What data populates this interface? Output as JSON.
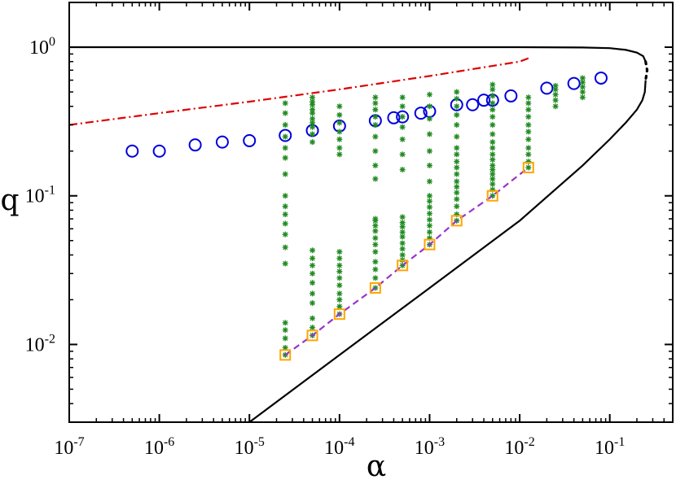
{
  "chart_data": {
    "type": "scatter",
    "xlabel": "α",
    "ylabel": "q",
    "xscale": "log",
    "yscale": "log",
    "xlim": [
      1e-07,
      0.5
    ],
    "ylim": [
      0.003,
      2.0
    ],
    "grid": false,
    "legend": "none",
    "x_ticks": [
      {
        "value": 1e-07,
        "base": "10",
        "exp": "-7"
      },
      {
        "value": 1e-06,
        "base": "10",
        "exp": "-6"
      },
      {
        "value": 1e-05,
        "base": "10",
        "exp": "-5"
      },
      {
        "value": 0.0001,
        "base": "10",
        "exp": "-4"
      },
      {
        "value": 0.001,
        "base": "10",
        "exp": "-3"
      },
      {
        "value": 0.01,
        "base": "10",
        "exp": "-2"
      },
      {
        "value": 0.1,
        "base": "10",
        "exp": "-1"
      }
    ],
    "y_ticks": [
      {
        "value": 0.01,
        "base": "10",
        "exp": "-2"
      },
      {
        "value": 0.1,
        "base": "10",
        "exp": "-1"
      },
      {
        "value": 1,
        "base": "10",
        "exp": "0"
      }
    ],
    "series": [
      {
        "style": "solid-line",
        "color": "#000000",
        "x": [
          1e-07,
          1e-05,
          0.0001,
          0.001,
          0.01,
          0.05,
          0.1,
          0.15,
          0.2,
          0.235,
          0.25
        ],
        "y": [
          1.0,
          1.0,
          1.0,
          1.0,
          1.0,
          0.995,
          0.985,
          0.96,
          0.92,
          0.87,
          0.8
        ]
      },
      {
        "style": "dotted-line",
        "color": "#000000",
        "x": [
          0.25,
          0.26,
          0.25
        ],
        "y": [
          0.8,
          0.7,
          0.6
        ]
      },
      {
        "style": "solid-line",
        "color": "#000000",
        "x": [
          1e-05,
          0.0001,
          0.001,
          0.01,
          0.05,
          0.1,
          0.15,
          0.2,
          0.23,
          0.245,
          0.25
        ],
        "y": [
          0.003,
          0.0085,
          0.024,
          0.068,
          0.16,
          0.24,
          0.31,
          0.38,
          0.44,
          0.5,
          0.6
        ]
      },
      {
        "style": "dash-dot-line",
        "color": "#dd0000",
        "x": [
          1e-07,
          1e-06,
          1e-05,
          0.0001,
          0.001,
          0.01,
          0.013
        ],
        "y": [
          0.3,
          0.36,
          0.43,
          0.52,
          0.64,
          0.8,
          0.85
        ]
      },
      {
        "style": "open-circle",
        "color": "#0000dd",
        "x": [
          5e-07,
          1e-06,
          2.5e-06,
          5e-06,
          1e-05,
          2.5e-05,
          5e-05,
          0.0001,
          0.00025,
          0.0004,
          0.0005,
          0.0008,
          0.001,
          0.002,
          0.003,
          0.004,
          0.005,
          0.008,
          0.02,
          0.04,
          0.08
        ],
        "y": [
          0.2,
          0.2,
          0.22,
          0.23,
          0.235,
          0.255,
          0.275,
          0.295,
          0.32,
          0.335,
          0.34,
          0.36,
          0.37,
          0.41,
          0.41,
          0.44,
          0.44,
          0.47,
          0.53,
          0.57,
          0.62
        ]
      },
      {
        "style": "star",
        "color": "#228b22",
        "columns": [
          {
            "x": 2.5e-05,
            "y": [
              0.0085,
              0.0095,
              0.011,
              0.0125,
              0.014,
              0.035,
              0.045,
              0.055,
              0.065,
              0.075,
              0.085,
              0.1,
              0.14,
              0.18,
              0.21,
              0.25,
              0.3,
              0.36,
              0.42
            ]
          },
          {
            "x": 5e-05,
            "y": [
              0.0115,
              0.013,
              0.015,
              0.019,
              0.022,
              0.026,
              0.03,
              0.034,
              0.038,
              0.043,
              0.23,
              0.26,
              0.29,
              0.31,
              0.33,
              0.36,
              0.38,
              0.41,
              0.43,
              0.46
            ]
          },
          {
            "x": 0.0001,
            "y": [
              0.016,
              0.018,
              0.02,
              0.022,
              0.025,
              0.028,
              0.031,
              0.034,
              0.038,
              0.042,
              0.19,
              0.21,
              0.24,
              0.27,
              0.31,
              0.35,
              0.4
            ]
          },
          {
            "x": 0.00025,
            "y": [
              0.024,
              0.028,
              0.032,
              0.036,
              0.042,
              0.047,
              0.052,
              0.058,
              0.063,
              0.068,
              0.07,
              0.13,
              0.16,
              0.2,
              0.25,
              0.3,
              0.34,
              0.38,
              0.42,
              0.46
            ]
          },
          {
            "x": 0.0005,
            "y": [
              0.034,
              0.037,
              0.04,
              0.044,
              0.048,
              0.053,
              0.057,
              0.062,
              0.066,
              0.072,
              0.15,
              0.19,
              0.24,
              0.29,
              0.34,
              0.4,
              0.46
            ]
          },
          {
            "x": 0.001,
            "y": [
              0.047,
              0.052,
              0.057,
              0.063,
              0.069,
              0.076,
              0.084,
              0.092,
              0.1,
              0.125,
              0.16,
              0.2,
              0.26,
              0.33,
              0.4,
              0.48
            ]
          },
          {
            "x": 0.002,
            "y": [
              0.068,
              0.075,
              0.085,
              0.095,
              0.105,
              0.115,
              0.125,
              0.14,
              0.155,
              0.17,
              0.19,
              0.21,
              0.25,
              0.3,
              0.35,
              0.4,
              0.45,
              0.5
            ]
          },
          {
            "x": 0.005,
            "y": [
              0.1,
              0.11,
              0.12,
              0.13,
              0.14,
              0.15,
              0.16,
              0.175,
              0.19,
              0.21,
              0.23,
              0.26,
              0.3,
              0.34,
              0.38,
              0.42,
              0.47,
              0.52,
              0.56
            ]
          },
          {
            "x": 0.0125,
            "y": [
              0.155,
              0.17,
              0.19,
              0.21,
              0.24,
              0.27,
              0.3,
              0.34,
              0.38,
              0.42,
              0.46
            ]
          },
          {
            "x": 0.025,
            "y": [
              0.4,
              0.44,
              0.48,
              0.52,
              0.55
            ]
          },
          {
            "x": 0.05,
            "y": [
              0.46,
              0.5,
              0.54,
              0.58,
              0.62
            ]
          }
        ]
      },
      {
        "style": "dashed-line",
        "color": "#9933cc",
        "x": [
          2.5e-05,
          5e-05,
          0.0001,
          0.00025,
          0.0005,
          0.001,
          0.002,
          0.005,
          0.0125
        ],
        "y": [
          0.0085,
          0.0115,
          0.016,
          0.024,
          0.034,
          0.047,
          0.068,
          0.1,
          0.155
        ]
      },
      {
        "style": "open-square",
        "color": "#ffa500",
        "x": [
          2.5e-05,
          5e-05,
          0.0001,
          0.00025,
          0.0005,
          0.001,
          0.002,
          0.005,
          0.0125
        ],
        "y": [
          0.0085,
          0.0115,
          0.016,
          0.024,
          0.034,
          0.047,
          0.068,
          0.1,
          0.155
        ]
      }
    ]
  }
}
